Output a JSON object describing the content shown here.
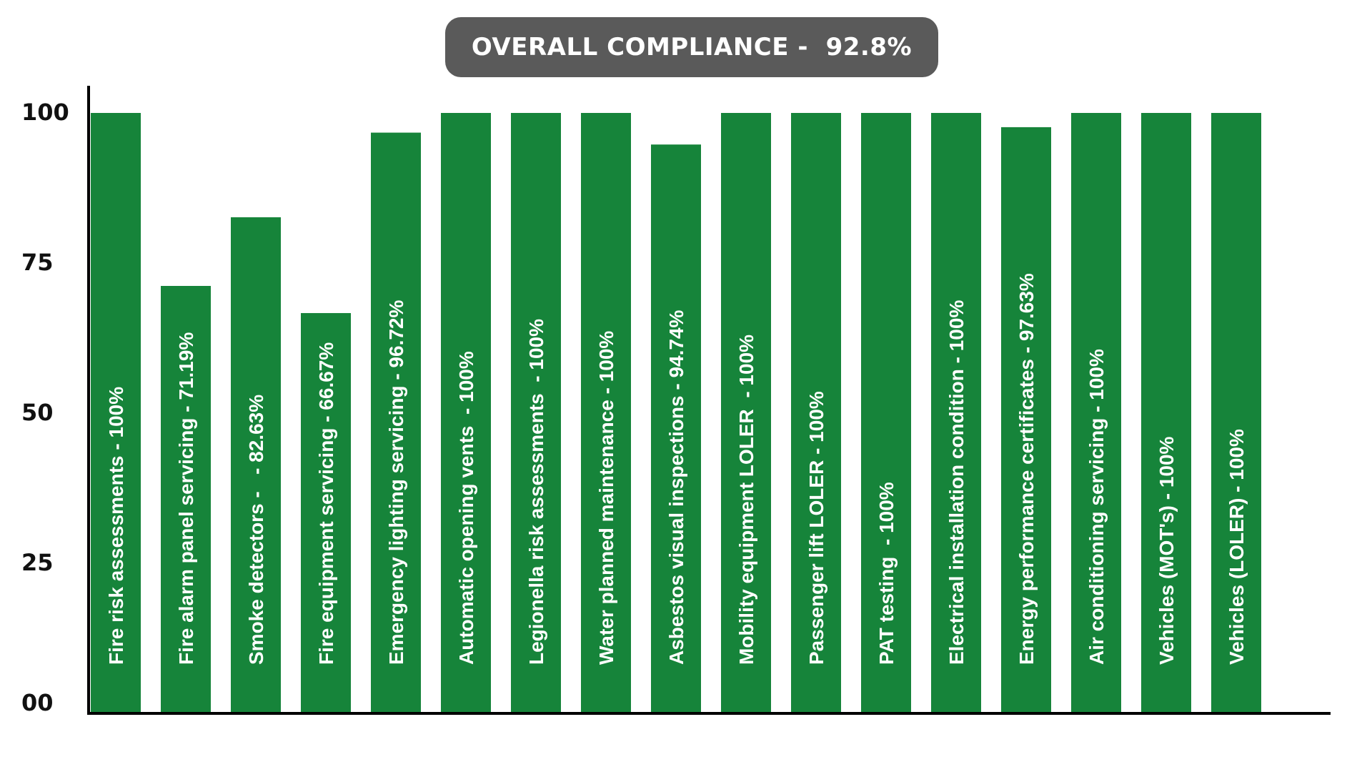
{
  "chart_data": {
    "type": "bar",
    "title": "OVERALL COMPLIANCE -  92.8%",
    "xlabel": "",
    "ylabel": "",
    "ylim": [
      0,
      104
    ],
    "grid": false,
    "bar_color": "#16843a",
    "title_bg_color": "#5a5a5a",
    "yticks": [
      {
        "value": 0,
        "label": "00"
      },
      {
        "value": 25,
        "label": "25"
      },
      {
        "value": 50,
        "label": "50"
      },
      {
        "value": 75,
        "label": "75"
      },
      {
        "value": 100,
        "label": "100"
      }
    ],
    "categories": [
      "Fire risk assessments - 100%",
      "Fire alarm panel servicing - 71.19%",
      "Smoke detectors -   - 82.63%",
      "Fire equipment servicing - 66.67%",
      "Emergency lighting servicing - 96.72%",
      "Automatic opening vents  - 100%",
      "Legionella risk assessments  - 100%",
      "Water planned maintenance - 100%",
      "Asbestos visual inspections - 94.74%",
      "Mobility equipment LOLER  - 100%",
      "Passenger lift LOLER - 100%",
      "PAT testing  - 100%",
      "Electrical installation condition - 100%",
      "Energy performance certificates - 97.63%",
      "Air conditioning servicing - 100%",
      "Vehicles (MOT's) - 100%",
      "Vehicles (LOLER) - 100%"
    ],
    "values": [
      100,
      71.19,
      82.63,
      66.67,
      96.72,
      100,
      100,
      100,
      94.74,
      100,
      100,
      100,
      100,
      97.63,
      100,
      100,
      100
    ]
  }
}
